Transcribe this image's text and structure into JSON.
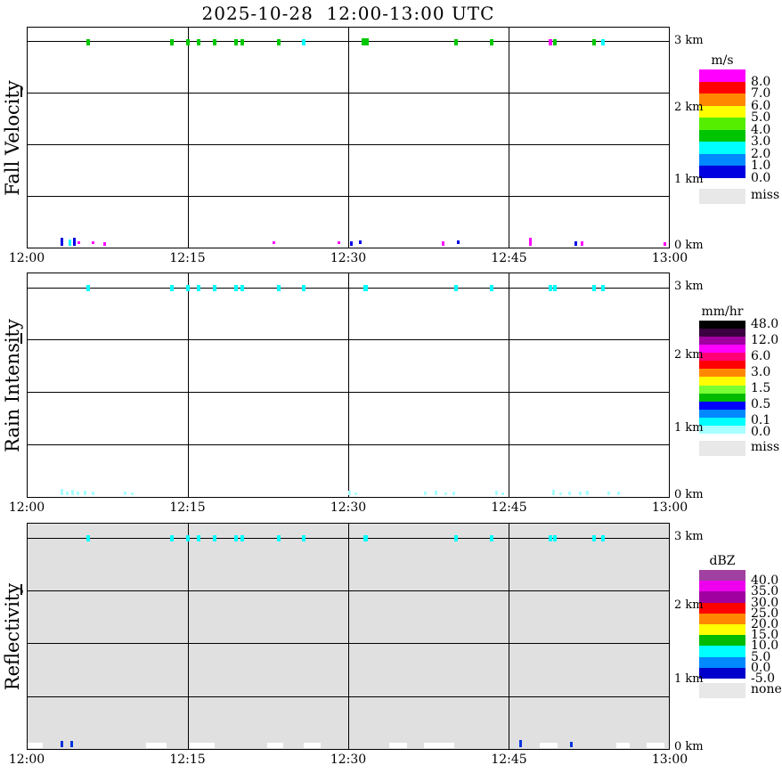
{
  "title": "2025-10-28  12:00-13:00 UTC",
  "time_axis": {
    "labels": [
      "12:00",
      "12:15",
      "12:30",
      "12:45",
      "13:00"
    ]
  },
  "height_axis": {
    "labels": [
      "3 km",
      "2 km",
      "1 km",
      "0 km"
    ],
    "top_km": 3.2,
    "bottom_km": 0.0
  },
  "chart_data": [
    {
      "type": "scatter",
      "title": "Fall Velocity",
      "unit": "m/s",
      "x_ticks": [
        "12:00",
        "12:15",
        "12:30",
        "12:45",
        "13:00"
      ],
      "x_range_minutes": [
        0,
        60
      ],
      "y_ticks": [
        "3 km",
        "2 km",
        "1 km",
        "0 km"
      ],
      "y_range_km": [
        0,
        3.2
      ],
      "background": "#FFFFFF",
      "legend": {
        "title": "m/s",
        "colors": [
          "#FF00FF",
          "#FF0000",
          "#FF8800",
          "#FFFF00",
          "#55EE00",
          "#00C400",
          "#00FFFF",
          "#0088FF",
          "#0000E0"
        ],
        "labels": [
          {
            "text": "8.0",
            "boundary": 1
          },
          {
            "text": "7.0",
            "boundary": 2
          },
          {
            "text": "6.0",
            "boundary": 3
          },
          {
            "text": "5.0",
            "boundary": 4
          },
          {
            "text": "4.0",
            "boundary": 5
          },
          {
            "text": "3.0",
            "boundary": 6
          },
          {
            "text": "2.0",
            "boundary": 7
          },
          {
            "text": "1.0",
            "boundary": 8
          },
          {
            "text": "0.0",
            "boundary": 9
          }
        ],
        "miss": {
          "color": "#E8E8E8",
          "label": "miss"
        }
      },
      "points_3km": [
        {
          "t": 5.7,
          "c": "#00C800"
        },
        {
          "t": 13.5,
          "c": "#00C800"
        },
        {
          "t": 15.0,
          "c": "#00C800"
        },
        {
          "t": 16.0,
          "c": "#00C800"
        },
        {
          "t": 17.5,
          "c": "#00C800"
        },
        {
          "t": 19.5,
          "c": "#00C800"
        },
        {
          "t": 20.1,
          "c": "#00C800"
        },
        {
          "t": 23.5,
          "c": "#00C800"
        },
        {
          "t": 25.8,
          "c": "#00FFFF"
        },
        {
          "t": 31.6,
          "c": "#00C800",
          "w": 8,
          "h": 8
        },
        {
          "t": 40.1,
          "c": "#00C800"
        },
        {
          "t": 43.4,
          "c": "#00C800"
        },
        {
          "t": 48.9,
          "c": "#FF00FF"
        },
        {
          "t": 49.3,
          "c": "#00C800"
        },
        {
          "t": 53.0,
          "c": "#00C800"
        },
        {
          "t": 53.8,
          "c": "#00FFFF"
        }
      ],
      "points_0km": [
        {
          "t": 3.2,
          "c": "#0000E8",
          "h": 9
        },
        {
          "t": 4.0,
          "c": "#00FFFF",
          "h": 7
        },
        {
          "t": 4.4,
          "c": "#0000E8",
          "h": 9
        },
        {
          "t": 4.8,
          "c": "#FF00FF",
          "h": 3,
          "b": 4
        },
        {
          "t": 6.1,
          "c": "#FF00FF",
          "h": 3,
          "b": 4
        },
        {
          "t": 7.2,
          "c": "#FF00FF",
          "h": 4
        },
        {
          "t": 23.0,
          "c": "#FF00FF",
          "h": 3,
          "b": 4
        },
        {
          "t": 29.1,
          "c": "#FF00FF",
          "h": 3,
          "b": 4
        },
        {
          "t": 30.3,
          "c": "#0000E8",
          "h": 5
        },
        {
          "t": 31.1,
          "c": "#0000E8",
          "h": 4,
          "b": 4
        },
        {
          "t": 38.9,
          "c": "#FF00FF",
          "h": 5
        },
        {
          "t": 40.3,
          "c": "#0000E8",
          "h": 4,
          "b": 4
        },
        {
          "t": 47.0,
          "c": "#FF00FF",
          "h": 9
        },
        {
          "t": 51.3,
          "c": "#0000E8",
          "h": 5
        },
        {
          "t": 51.9,
          "c": "#FF00FF",
          "h": 5
        },
        {
          "t": 59.6,
          "c": "#FF00FF",
          "h": 4
        }
      ],
      "white_patches": []
    },
    {
      "type": "scatter",
      "title": "Rain Intensity",
      "unit": "mm/hr",
      "x_ticks": [
        "12:00",
        "12:15",
        "12:30",
        "12:45",
        "13:00"
      ],
      "x_range_minutes": [
        0,
        60
      ],
      "y_ticks": [
        "3 km",
        "2 km",
        "1 km",
        "0 km"
      ],
      "y_range_km": [
        0,
        3.2
      ],
      "background": "#FFFFFF",
      "legend": {
        "title": "mm/hr",
        "colors": [
          "#000000",
          "#3A0040",
          "#A000A0",
          "#FF00FF",
          "#FF0077",
          "#FF0000",
          "#FF8800",
          "#FFFF00",
          "#77FF33",
          "#00BB00",
          "#0000FF",
          "#0088FF",
          "#00FFFF",
          "#A8FFFF"
        ],
        "labels": [
          {
            "text": "48.0",
            "boundary": 0.4
          },
          {
            "text": "12.0",
            "boundary": 2.4
          },
          {
            "text": "6.0",
            "boundary": 4.4
          },
          {
            "text": "3.0",
            "boundary": 6.4
          },
          {
            "text": "1.5",
            "boundary": 8.4
          },
          {
            "text": "0.5",
            "boundary": 10.4
          },
          {
            "text": "0.1",
            "boundary": 12.4
          },
          {
            "text": "0.0",
            "boundary": 13.8
          }
        ],
        "miss": {
          "color": "#E8E8E8",
          "label": "miss"
        }
      },
      "points_3km": [
        {
          "t": 5.7,
          "c": "#00FFFF"
        },
        {
          "t": 13.5,
          "c": "#00FFFF"
        },
        {
          "t": 15.0,
          "c": "#00FFFF"
        },
        {
          "t": 16.0,
          "c": "#00FFFF"
        },
        {
          "t": 17.5,
          "c": "#00FFFF"
        },
        {
          "t": 19.5,
          "c": "#00FFFF"
        },
        {
          "t": 20.1,
          "c": "#00FFFF"
        },
        {
          "t": 23.5,
          "c": "#00FFFF"
        },
        {
          "t": 25.8,
          "c": "#00FFFF"
        },
        {
          "t": 31.6,
          "c": "#00FFFF",
          "w": 5
        },
        {
          "t": 40.1,
          "c": "#00FFFF"
        },
        {
          "t": 43.4,
          "c": "#00FFFF"
        },
        {
          "t": 48.9,
          "c": "#00FFFF"
        },
        {
          "t": 49.3,
          "c": "#00FFFF"
        },
        {
          "t": 53.0,
          "c": "#00FFFF"
        },
        {
          "t": 53.8,
          "c": "#00FFFF"
        }
      ],
      "points_0km": [
        {
          "t": 3.2,
          "c": "#A8FFFF",
          "h": 7
        },
        {
          "t": 3.7,
          "c": "#A8FFFF",
          "h": 4
        },
        {
          "t": 4.2,
          "c": "#A8FFFF",
          "h": 6
        },
        {
          "t": 4.7,
          "c": "#A8FFFF",
          "h": 4
        },
        {
          "t": 5.4,
          "c": "#A8FFFF",
          "h": 5
        },
        {
          "t": 6.1,
          "c": "#A8FFFF",
          "h": 4
        },
        {
          "t": 9.1,
          "c": "#A8FFFF",
          "h": 4
        },
        {
          "t": 9.8,
          "c": "#A8FFFF",
          "h": 3
        },
        {
          "t": 30.1,
          "c": "#A8FFFF",
          "h": 5
        },
        {
          "t": 30.7,
          "c": "#A8FFFF",
          "h": 3
        },
        {
          "t": 37.2,
          "c": "#A8FFFF",
          "h": 4
        },
        {
          "t": 38.2,
          "c": "#A8FFFF",
          "h": 5
        },
        {
          "t": 39.1,
          "c": "#A8FFFF",
          "h": 3
        },
        {
          "t": 39.9,
          "c": "#A8FFFF",
          "h": 4
        },
        {
          "t": 43.9,
          "c": "#A8FFFF",
          "h": 5
        },
        {
          "t": 44.5,
          "c": "#A8FFFF",
          "h": 3
        },
        {
          "t": 49.2,
          "c": "#A8FFFF",
          "h": 6
        },
        {
          "t": 49.9,
          "c": "#A8FFFF",
          "h": 3
        },
        {
          "t": 50.7,
          "c": "#A8FFFF",
          "h": 4
        },
        {
          "t": 51.7,
          "c": "#A8FFFF",
          "h": 4
        },
        {
          "t": 52.4,
          "c": "#A8FFFF",
          "h": 5
        },
        {
          "t": 54.4,
          "c": "#A8FFFF",
          "h": 4
        },
        {
          "t": 55.3,
          "c": "#A8FFFF",
          "h": 4
        }
      ],
      "white_patches": []
    },
    {
      "type": "scatter",
      "title": "Reflectivity",
      "unit": "dBZ",
      "x_ticks": [
        "12:00",
        "12:15",
        "12:30",
        "12:45",
        "13:00"
      ],
      "x_range_minutes": [
        0,
        60
      ],
      "y_ticks": [
        "3 km",
        "2 km",
        "1 km",
        "0 km"
      ],
      "y_range_km": [
        0,
        3.2
      ],
      "background": "#E0E0E0",
      "legend": {
        "title": "dBZ",
        "colors": [
          "#A040A0",
          "#EE00EE",
          "#A000A0",
          "#FF0000",
          "#FF8800",
          "#FFFF00",
          "#00BB00",
          "#00FFFF",
          "#0088FF",
          "#0000CC"
        ],
        "labels": [
          {
            "text": "40.0",
            "boundary": 1
          },
          {
            "text": "35.0",
            "boundary": 2
          },
          {
            "text": "30.0",
            "boundary": 3
          },
          {
            "text": "25.0",
            "boundary": 4
          },
          {
            "text": "20.0",
            "boundary": 5
          },
          {
            "text": "15.0",
            "boundary": 6
          },
          {
            "text": "10.0",
            "boundary": 7
          },
          {
            "text": "5.0",
            "boundary": 8
          },
          {
            "text": "0.0",
            "boundary": 9
          },
          {
            "text": "-5.0",
            "boundary": 10
          }
        ],
        "miss": {
          "color": "#E8E8E8",
          "label": "none"
        }
      },
      "points_3km": [
        {
          "t": 5.7,
          "c": "#00FFFF"
        },
        {
          "t": 13.5,
          "c": "#00FFFF"
        },
        {
          "t": 15.0,
          "c": "#00FFFF"
        },
        {
          "t": 16.0,
          "c": "#00FFFF"
        },
        {
          "t": 17.5,
          "c": "#00FFFF"
        },
        {
          "t": 19.5,
          "c": "#00FFFF"
        },
        {
          "t": 20.1,
          "c": "#00FFFF"
        },
        {
          "t": 23.5,
          "c": "#00FFFF"
        },
        {
          "t": 25.8,
          "c": "#00FFFF"
        },
        {
          "t": 31.6,
          "c": "#00FFFF",
          "w": 5
        },
        {
          "t": 40.1,
          "c": "#00FFFF"
        },
        {
          "t": 43.4,
          "c": "#00FFFF"
        },
        {
          "t": 48.9,
          "c": "#00FFFF"
        },
        {
          "t": 49.3,
          "c": "#00FFFF"
        },
        {
          "t": 53.0,
          "c": "#00FFFF"
        },
        {
          "t": 53.8,
          "c": "#00FFFF"
        }
      ],
      "points_0km": [
        {
          "t": 3.2,
          "c": "#0033DD",
          "h": 7
        },
        {
          "t": 4.1,
          "c": "#0033DD",
          "h": 7
        },
        {
          "t": 46.1,
          "c": "#0033DD",
          "h": 8
        },
        {
          "t": 50.9,
          "c": "#0033DD",
          "h": 6
        }
      ],
      "white_patches": [
        {
          "t0": 0.0,
          "t1": 1.4
        },
        {
          "t0": 11.1,
          "t1": 13.0
        },
        {
          "t0": 15.2,
          "t1": 17.5
        },
        {
          "t0": 22.4,
          "t1": 23.9
        },
        {
          "t0": 25.8,
          "t1": 27.4
        },
        {
          "t0": 33.8,
          "t1": 35.5
        },
        {
          "t0": 37.1,
          "t1": 39.9
        },
        {
          "t0": 47.9,
          "t1": 49.6
        },
        {
          "t0": 55.1,
          "t1": 56.3
        },
        {
          "t0": 57.9,
          "t1": 59.6
        }
      ]
    }
  ]
}
